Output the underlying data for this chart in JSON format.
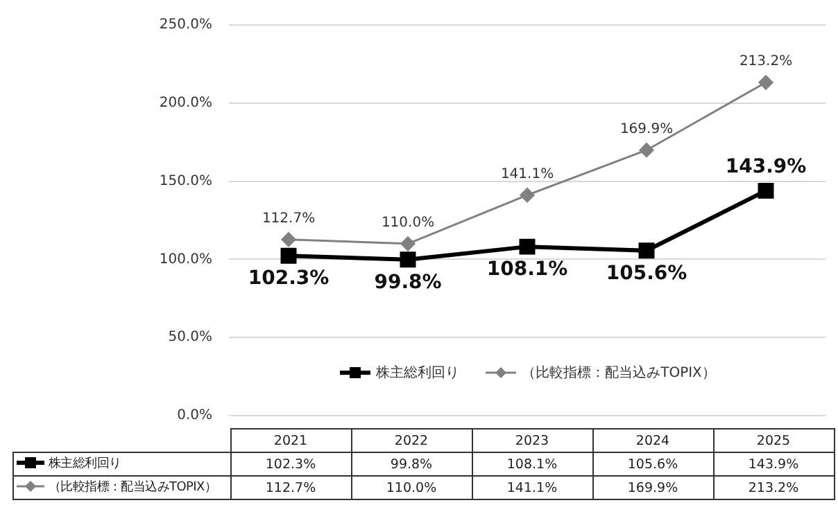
{
  "chart_data": {
    "type": "line",
    "categories": [
      "2021",
      "2022",
      "2023",
      "2024",
      "2025"
    ],
    "series": [
      {
        "name": "株主総利回り",
        "color": "#000000",
        "marker": "square",
        "values": [
          102.3,
          99.8,
          108.1,
          105.6,
          143.9
        ],
        "value_labels": [
          "102.3%",
          "99.8%",
          "108.1%",
          "105.6%",
          "143.9%"
        ]
      },
      {
        "name": "（比較指標：配当込みTOPIX）",
        "color": "#808080",
        "marker": "diamond",
        "values": [
          112.7,
          110.0,
          141.1,
          169.9,
          213.2
        ],
        "value_labels": [
          "112.7%",
          "110.0%",
          "141.1%",
          "169.9%",
          "213.2%"
        ]
      }
    ],
    "ylim": [
      0,
      250
    ],
    "yticks": [
      {
        "value": 0,
        "label": "0.0%"
      },
      {
        "value": 50,
        "label": "50.0%"
      },
      {
        "value": 100,
        "label": "100.0%"
      },
      {
        "value": 150,
        "label": "150.0%"
      },
      {
        "value": 200,
        "label": "200.0%"
      },
      {
        "value": 250,
        "label": "250.0%"
      }
    ],
    "grid": "y",
    "legend": "bottom"
  }
}
